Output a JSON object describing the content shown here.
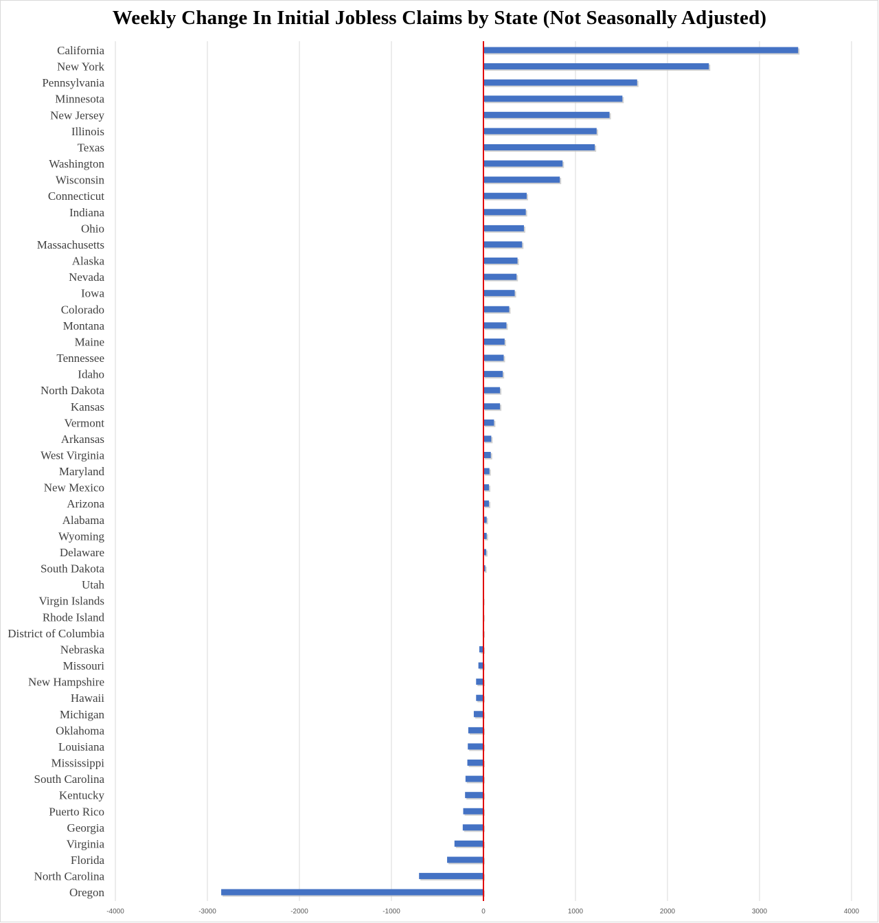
{
  "chart_data": {
    "type": "bar",
    "orientation": "horizontal",
    "title": "Weekly Change In Initial Jobless Claims by State (Not Seasonally Adjusted)",
    "xlabel": "",
    "ylabel": "",
    "xlim": [
      -4000,
      4000
    ],
    "xticks": [
      -4000,
      -3000,
      -2000,
      -1000,
      0,
      1000,
      2000,
      3000,
      4000
    ],
    "grid": true,
    "legend": "none",
    "colors": {
      "bar": "#4472c4",
      "bar_shadow": "#bfbfbf",
      "zero_line": "#e00000",
      "grid": "#d9d9d9"
    },
    "categories": [
      "California",
      "New York",
      "Pennsylvania",
      "Minnesota",
      "New Jersey",
      "Illinois",
      "Texas",
      "Washington",
      "Wisconsin",
      "Connecticut",
      "Indiana",
      "Ohio",
      "Massachusetts",
      "Alaska",
      "Nevada",
      "Iowa",
      "Colorado",
      "Montana",
      "Maine",
      "Tennessee",
      "Idaho",
      "North Dakota",
      "Kansas",
      "Vermont",
      "Arkansas",
      "West Virginia",
      "Maryland",
      "New Mexico",
      "Arizona",
      "Alabama",
      "Wyoming",
      "Delaware",
      "South Dakota",
      "Utah",
      "Virgin Islands",
      "Rhode Island",
      "District of Columbia",
      "Nebraska",
      "Missouri",
      "New Hampshire",
      "Hawaii",
      "Michigan",
      "Oklahoma",
      "Louisiana",
      "Mississippi",
      "South Carolina",
      "Kentucky",
      "Puerto Rico",
      "Georgia",
      "Virginia",
      "Florida",
      "North Carolina",
      "Oregon"
    ],
    "values": [
      3420,
      2450,
      1670,
      1510,
      1370,
      1230,
      1210,
      860,
      830,
      470,
      460,
      440,
      420,
      370,
      360,
      340,
      280,
      250,
      230,
      220,
      210,
      180,
      180,
      115,
      85,
      80,
      65,
      60,
      60,
      35,
      35,
      30,
      20,
      0,
      -5,
      -6,
      -8,
      -45,
      -55,
      -80,
      -80,
      -105,
      -165,
      -170,
      -175,
      -195,
      -200,
      -220,
      -225,
      -315,
      -395,
      -700,
      -2850
    ]
  }
}
